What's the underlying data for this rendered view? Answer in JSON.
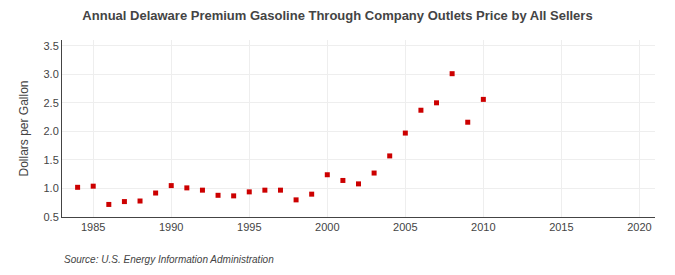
{
  "chart_data": {
    "type": "scatter",
    "title": "Annual Delaware Premium Gasoline Through Company Outlets Price by All Sellers",
    "ylabel": "Dollars per Gallon",
    "x": [
      1984,
      1985,
      1986,
      1987,
      1988,
      1989,
      1990,
      1991,
      1992,
      1993,
      1994,
      1995,
      1996,
      1997,
      1998,
      1999,
      2000,
      2001,
      2002,
      2003,
      2004,
      2005,
      2006,
      2007,
      2008,
      2009,
      2010
    ],
    "values": [
      1.02,
      1.04,
      0.72,
      0.77,
      0.78,
      0.92,
      1.05,
      1.01,
      0.97,
      0.88,
      0.87,
      0.94,
      0.97,
      0.97,
      0.8,
      0.9,
      1.24,
      1.14,
      1.08,
      1.27,
      1.57,
      1.97,
      2.37,
      2.5,
      3.01,
      2.16,
      2.56
    ],
    "color": "#cc0000",
    "marker": "square",
    "xlim": [
      1983,
      2021
    ],
    "xticks": [
      1985,
      1990,
      1995,
      2000,
      2005,
      2010,
      2015,
      2020
    ],
    "ylim": [
      0.5,
      3.6
    ],
    "yticks": [
      0.5,
      {
        "value": 1.0,
        "label": "1.0"
      },
      1.5,
      {
        "value": 2.0,
        "label": "2.0"
      },
      2.5,
      {
        "value": 3.0,
        "label": "3.0"
      },
      3.5
    ],
    "grid": true,
    "annotations": [
      "Source: U.S. Energy Information Administration"
    ]
  }
}
